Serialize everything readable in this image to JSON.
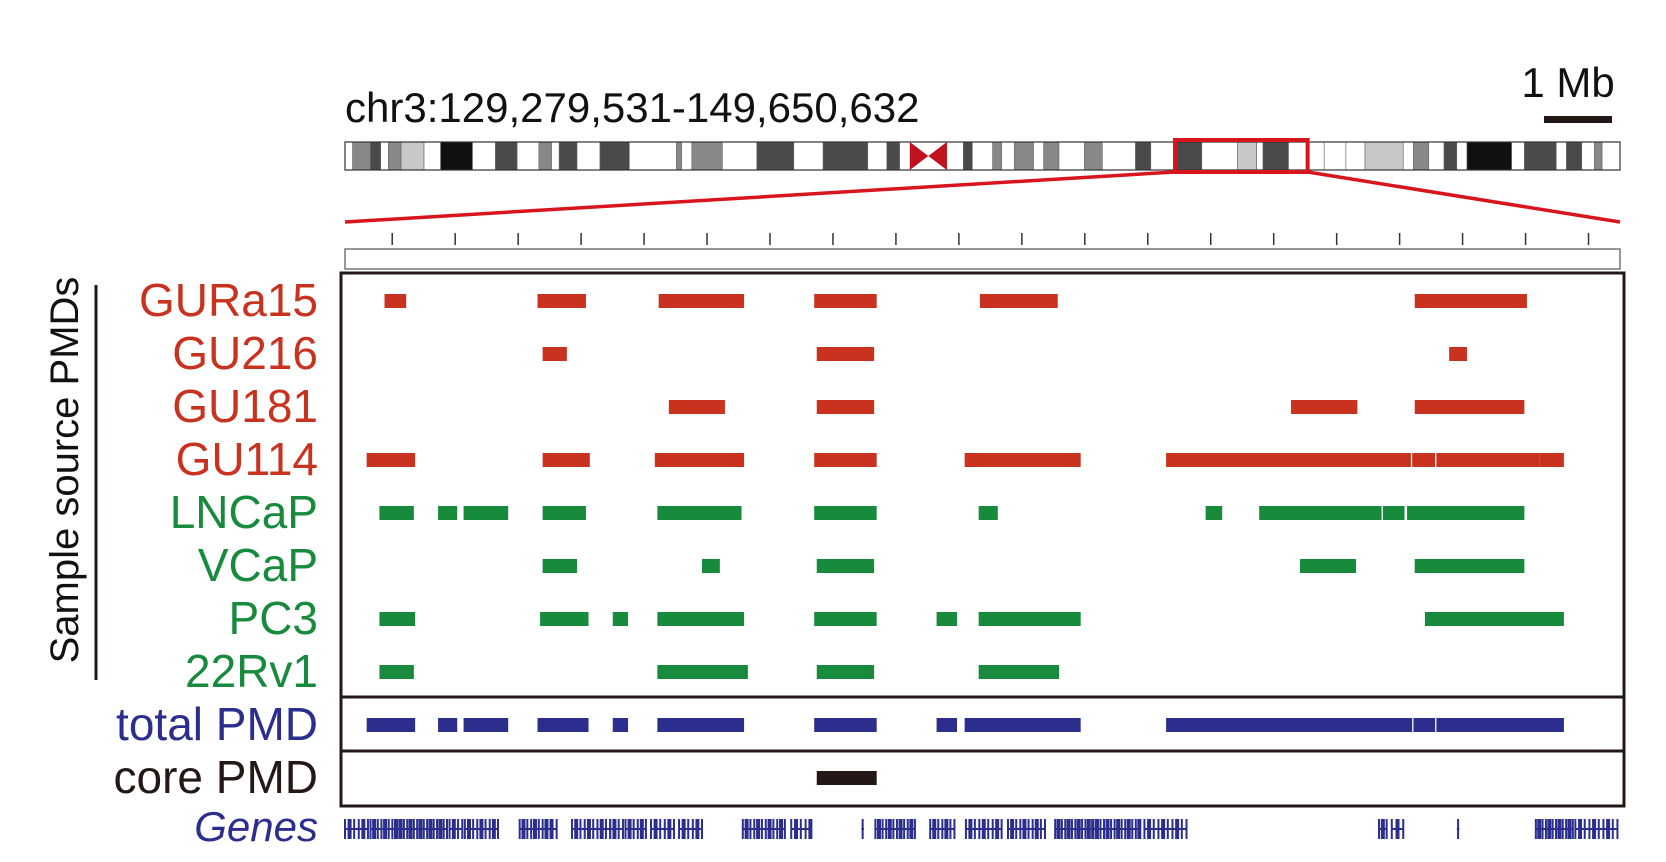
{
  "coordinate_label": "chr3:129,279,531-149,650,632",
  "scale_bar_label": "1 Mb",
  "y_axis_label": "Sample source PMDs",
  "colors": {
    "sample_red": "#c8321e",
    "sample_green": "#178a3c",
    "total_blue": "#2b2e8c",
    "core_black": "#231815",
    "highlight_red": "#d8141c",
    "gene_blue": "#2b2e8c"
  },
  "ideogram": {
    "bands": [
      [
        "w",
        0,
        0.006
      ],
      [
        "g2",
        0.006,
        0.02
      ],
      [
        "g3",
        0.02,
        0.028
      ],
      [
        "w",
        0.028,
        0.034
      ],
      [
        "g2",
        0.034,
        0.044
      ],
      [
        "g4",
        0.044,
        0.062
      ],
      [
        "w",
        0.062,
        0.075
      ],
      [
        "g1",
        0.075,
        0.1
      ],
      [
        "w",
        0.1,
        0.118
      ],
      [
        "g3",
        0.118,
        0.135
      ],
      [
        "w",
        0.135,
        0.152
      ],
      [
        "g2",
        0.152,
        0.162
      ],
      [
        "w",
        0.162,
        0.168
      ],
      [
        "g3",
        0.168,
        0.182
      ],
      [
        "w",
        0.182,
        0.2
      ],
      [
        "g3",
        0.2,
        0.223
      ],
      [
        "w",
        0.223,
        0.26
      ],
      [
        "g2",
        0.26,
        0.264
      ],
      [
        "w",
        0.264,
        0.272
      ],
      [
        "g2",
        0.272,
        0.296
      ],
      [
        "w",
        0.296,
        0.323
      ],
      [
        "g3",
        0.323,
        0.352
      ],
      [
        "w",
        0.352,
        0.375
      ],
      [
        "g3",
        0.375,
        0.41
      ],
      [
        "w",
        0.41,
        0.425
      ],
      [
        "g3",
        0.425,
        0.435
      ],
      [
        "w",
        0.472,
        0.485
      ],
      [
        "g3",
        0.485,
        0.492
      ],
      [
        "w",
        0.492,
        0.508
      ],
      [
        "g2",
        0.508,
        0.515
      ],
      [
        "w",
        0.515,
        0.525
      ],
      [
        "g2",
        0.525,
        0.54
      ],
      [
        "w",
        0.54,
        0.548
      ],
      [
        "g2",
        0.548,
        0.56
      ],
      [
        "w",
        0.56,
        0.58
      ],
      [
        "g2",
        0.58,
        0.594
      ],
      [
        "w",
        0.594,
        0.62
      ],
      [
        "g3",
        0.62,
        0.632
      ],
      [
        "w",
        0.632,
        0.65
      ],
      [
        "g3",
        0.65,
        0.672
      ],
      [
        "w",
        0.672,
        0.7
      ],
      [
        "g4",
        0.7,
        0.715
      ],
      [
        "w",
        0.715,
        0.72
      ],
      [
        "g3",
        0.72,
        0.74
      ],
      [
        "w",
        0.74,
        0.768
      ],
      [
        "w",
        0.768,
        0.785
      ],
      [
        "w",
        0.785,
        0.8
      ],
      [
        "g4",
        0.8,
        0.83
      ],
      [
        "w",
        0.83,
        0.838
      ],
      [
        "g2",
        0.838,
        0.85
      ],
      [
        "w",
        0.85,
        0.862
      ],
      [
        "g3",
        0.862,
        0.872
      ],
      [
        "w",
        0.872,
        0.88
      ],
      [
        "g1",
        0.88,
        0.915
      ],
      [
        "w",
        0.915,
        0.925
      ],
      [
        "g3",
        0.925,
        0.95
      ],
      [
        "w",
        0.95,
        0.958
      ],
      [
        "g3",
        0.958,
        0.97
      ],
      [
        "w",
        0.97,
        0.98
      ],
      [
        "g2",
        0.98,
        0.986
      ],
      [
        "w",
        0.986,
        1.0
      ]
    ],
    "centromere": [
      0.443,
      0.472
    ],
    "zoom_window": [
      0.651,
      0.755
    ]
  },
  "ruler_ticks": 20,
  "tracks": [
    {
      "label": "GURa15",
      "group": "sample_red",
      "segments": [
        [
          0.031,
          0.048
        ],
        [
          0.151,
          0.189
        ],
        [
          0.246,
          0.313
        ],
        [
          0.368,
          0.417
        ],
        [
          0.498,
          0.559
        ],
        [
          0.839,
          0.927
        ]
      ]
    },
    {
      "label": "GU216",
      "group": "sample_red",
      "segments": [
        [
          0.155,
          0.174
        ],
        [
          0.37,
          0.415
        ],
        [
          0.866,
          0.88
        ]
      ]
    },
    {
      "label": "GU181",
      "group": "sample_red",
      "segments": [
        [
          0.254,
          0.298
        ],
        [
          0.37,
          0.415
        ],
        [
          0.742,
          0.794
        ],
        [
          0.839,
          0.925
        ]
      ]
    },
    {
      "label": "GU114",
      "group": "sample_red",
      "segments": [
        [
          0.017,
          0.055
        ],
        [
          0.155,
          0.192
        ],
        [
          0.243,
          0.313
        ],
        [
          0.368,
          0.417
        ],
        [
          0.486,
          0.577
        ],
        [
          0.644,
          0.836
        ],
        [
          0.837,
          0.855
        ],
        [
          0.856,
          0.937
        ],
        [
          0.937,
          0.956
        ]
      ]
    },
    {
      "label": "LNCaP",
      "group": "sample_green",
      "segments": [
        [
          0.027,
          0.054
        ],
        [
          0.073,
          0.088
        ],
        [
          0.093,
          0.128
        ],
        [
          0.155,
          0.189
        ],
        [
          0.245,
          0.311
        ],
        [
          0.368,
          0.417
        ],
        [
          0.497,
          0.512
        ],
        [
          0.675,
          0.688
        ],
        [
          0.717,
          0.813
        ],
        [
          0.814,
          0.831
        ],
        [
          0.833,
          0.925
        ]
      ]
    },
    {
      "label": "VCaP",
      "group": "sample_green",
      "segments": [
        [
          0.155,
          0.182
        ],
        [
          0.28,
          0.294
        ],
        [
          0.37,
          0.415
        ],
        [
          0.749,
          0.793
        ],
        [
          0.839,
          0.925
        ]
      ]
    },
    {
      "label": "PC3",
      "group": "sample_green",
      "segments": [
        [
          0.027,
          0.055
        ],
        [
          0.153,
          0.191
        ],
        [
          0.21,
          0.222
        ],
        [
          0.245,
          0.313
        ],
        [
          0.368,
          0.417
        ],
        [
          0.464,
          0.48
        ],
        [
          0.497,
          0.577
        ],
        [
          0.847,
          0.956
        ]
      ]
    },
    {
      "label": "22Rv1",
      "group": "sample_green",
      "segments": [
        [
          0.027,
          0.054
        ],
        [
          0.245,
          0.316
        ],
        [
          0.37,
          0.415
        ],
        [
          0.497,
          0.56
        ]
      ]
    },
    {
      "label": "total PMD",
      "group": "total_blue",
      "segments": [
        [
          0.017,
          0.055
        ],
        [
          0.073,
          0.088
        ],
        [
          0.093,
          0.128
        ],
        [
          0.151,
          0.191
        ],
        [
          0.21,
          0.222
        ],
        [
          0.245,
          0.313
        ],
        [
          0.368,
          0.417
        ],
        [
          0.464,
          0.48
        ],
        [
          0.486,
          0.577
        ],
        [
          0.644,
          0.837
        ],
        [
          0.838,
          0.855
        ],
        [
          0.856,
          0.956
        ]
      ]
    },
    {
      "label": "core PMD",
      "group": "core_black",
      "segments": [
        [
          0.37,
          0.417
        ]
      ]
    }
  ],
  "genes_label": "Genes",
  "gene_clusters": [
    [
      0.0,
      0.018,
      6
    ],
    [
      0.02,
      0.04,
      8
    ],
    [
      0.041,
      0.08,
      16
    ],
    [
      0.082,
      0.092,
      4
    ],
    [
      0.094,
      0.12,
      9
    ],
    [
      0.137,
      0.158,
      8
    ],
    [
      0.158,
      0.166,
      3
    ],
    [
      0.178,
      0.208,
      10
    ],
    [
      0.208,
      0.218,
      4
    ],
    [
      0.22,
      0.236,
      6
    ],
    [
      0.24,
      0.258,
      6
    ],
    [
      0.262,
      0.28,
      6
    ],
    [
      0.312,
      0.345,
      12
    ],
    [
      0.35,
      0.365,
      5
    ],
    [
      0.405,
      0.407,
      1
    ],
    [
      0.416,
      0.447,
      12
    ],
    [
      0.459,
      0.478,
      7
    ],
    [
      0.487,
      0.515,
      9
    ],
    [
      0.52,
      0.549,
      10
    ],
    [
      0.557,
      0.586,
      12
    ],
    [
      0.587,
      0.623,
      14
    ],
    [
      0.627,
      0.66,
      10
    ],
    [
      0.811,
      0.817,
      3
    ],
    [
      0.821,
      0.83,
      3
    ],
    [
      0.872,
      0.874,
      1
    ],
    [
      0.934,
      0.963,
      12
    ],
    [
      0.965,
      0.998,
      10
    ]
  ]
}
